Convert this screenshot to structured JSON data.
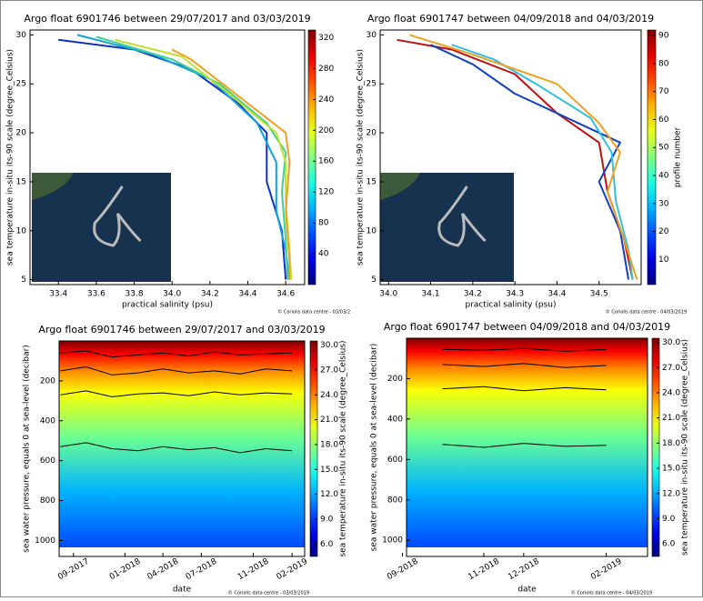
{
  "chart_data": [
    {
      "type": "line",
      "title": "Argo float 6901746 between 29/07/2017 and 03/03/2019",
      "xlabel": "practical salinity (psu)",
      "ylabel": "sea temperature in-situ its-90 scale (degree_Celsius)",
      "xlim": [
        33.25,
        34.7
      ],
      "xticks": [
        33.4,
        33.6,
        33.8,
        {
          "value": 34,
          "label": "34.0"
        },
        34.2,
        34.4,
        34.6
      ],
      "ylim": [
        4.5,
        30.5
      ],
      "yticks": [
        5,
        10,
        15,
        20,
        25,
        30
      ],
      "colormap": "jet",
      "clim": [
        0,
        330
      ],
      "cticks": [
        40,
        80,
        120,
        160,
        200,
        240,
        280,
        320
      ],
      "credit": "© Coriolis data centre - 03/03/2",
      "series": [
        {
          "color": "#1030c0",
          "x": [
            33.4,
            33.8,
            34.1,
            34.35,
            34.5,
            34.5,
            34.58,
            34.6
          ],
          "values": [
            29.5,
            28.5,
            26.5,
            23,
            20,
            15,
            10,
            5
          ]
        },
        {
          "color": "#10a0e0",
          "x": [
            33.5,
            33.9,
            34.2,
            34.45,
            34.55,
            34.55,
            34.6,
            34.62
          ],
          "values": [
            30,
            28,
            25.5,
            21,
            17,
            12,
            8,
            5
          ]
        },
        {
          "color": "#40d090",
          "x": [
            33.6,
            34.0,
            34.25,
            34.5,
            34.6,
            34.58,
            34.6,
            34.61
          ],
          "values": [
            29.8,
            27.5,
            25,
            21,
            18,
            14,
            9,
            5
          ]
        },
        {
          "color": "#c0e030",
          "x": [
            33.7,
            34.05,
            34.3,
            34.55,
            34.6,
            34.6,
            34.62,
            34.63
          ],
          "values": [
            29.5,
            27.8,
            24,
            20,
            17,
            13,
            8,
            5
          ]
        },
        {
          "color": "#f0a020",
          "x": [
            34.0,
            34.1,
            34.3,
            34.6,
            34.62,
            34.6,
            34.62,
            34.62
          ],
          "values": [
            28.5,
            27.5,
            24.5,
            20,
            17,
            12,
            7,
            5
          ]
        }
      ]
    },
    {
      "type": "line",
      "title": "Argo float 6901747 between 04/09/2018 and 04/03/2019",
      "xlabel": "practical salinity (psu)",
      "ylabel": "sea temperature in-situ its-90 scale (degree_Celsius)",
      "xlim": [
        33.98,
        34.6
      ],
      "xticks": [
        {
          "value": 34,
          "label": "34.0"
        },
        34.1,
        34.2,
        34.3,
        34.4,
        34.5
      ],
      "ylim": [
        4.5,
        30.5
      ],
      "yticks": [
        5,
        10,
        15,
        20,
        25,
        30
      ],
      "colormap": "jet",
      "clim": [
        1,
        92
      ],
      "cticks": [
        10,
        20,
        30,
        40,
        50,
        60,
        70,
        80,
        90
      ],
      "clabel": "profile number",
      "credit": "© Coriolis data centre - 04/03/2019",
      "series": [
        {
          "color": "#c01010",
          "x": [
            34.02,
            34.15,
            34.3,
            34.4,
            34.5,
            34.52,
            34.56,
            34.58
          ],
          "values": [
            29.5,
            28.5,
            26,
            22,
            19,
            14,
            9,
            5
          ]
        },
        {
          "color": "#1040c0",
          "x": [
            34.1,
            34.2,
            34.3,
            34.45,
            34.55,
            34.5,
            34.55,
            34.57
          ],
          "values": [
            29,
            27,
            24,
            21,
            19,
            15,
            10,
            5
          ]
        },
        {
          "color": "#30c0e0",
          "x": [
            34.15,
            34.25,
            34.35,
            34.48,
            34.53,
            34.54,
            34.57,
            34.58
          ],
          "values": [
            29,
            27.5,
            25,
            21.5,
            18,
            13,
            8,
            5
          ]
        },
        {
          "color": "#f0a020",
          "x": [
            34.05,
            34.2,
            34.4,
            34.5,
            34.55,
            34.52,
            34.56,
            34.59
          ],
          "values": [
            30,
            28,
            25,
            21,
            18,
            14,
            9,
            5
          ]
        }
      ]
    },
    {
      "type": "heatmap",
      "title": "Argo float 6901746 between 29/07/2017 and 03/03/2019",
      "xlabel": "date",
      "ylabel": "sea water pressure, equals 0 at sea-level (decibar)",
      "clabel": "sea temperature in-situ its-90 scale (degree_Celsius)",
      "xlim": [
        "2017-07-29",
        "2019-03-03"
      ],
      "xticks": [
        {
          "value": "2017-09",
          "label": "09-2017"
        },
        {
          "value": "2018-01",
          "label": "01-2018"
        },
        {
          "value": "2018-04",
          "label": "04-2018"
        },
        {
          "value": "2018-07",
          "label": "07-2018"
        },
        {
          "value": "2018-11",
          "label": "11-2018"
        },
        {
          "value": "2019-02",
          "label": "02-2019"
        }
      ],
      "ylim": [
        1080,
        0
      ],
      "yticks": [
        200,
        400,
        600,
        800,
        1000
      ],
      "colormap": "jet",
      "clim": [
        4.5,
        30.5
      ],
      "cticks": [
        {
          "value": 6,
          "label": "6.0"
        },
        {
          "value": 9,
          "label": "9.0"
        },
        {
          "value": 12,
          "label": "12.0"
        },
        {
          "value": 15,
          "label": "15.0"
        },
        {
          "value": 18,
          "label": "18.0"
        },
        {
          "value": 21,
          "label": "21.0"
        },
        {
          "value": 24,
          "label": "24.0"
        },
        {
          "value": 27,
          "label": "27.0"
        },
        {
          "value": 30,
          "label": "30.0"
        }
      ],
      "credit": "© Coriolis data centre - 03/03/2019",
      "series": [
        {
          "color": "#000000",
          "x": [
            "2017-08",
            "2017-10",
            "2017-12",
            "2018-02",
            "2018-04",
            "2018-06",
            "2018-08",
            "2018-10",
            "2018-12",
            "2019-02"
          ],
          "values": [
            60,
            50,
            80,
            70,
            60,
            75,
            55,
            70,
            65,
            60
          ]
        },
        {
          "color": "#000000",
          "x": [
            "2017-08",
            "2017-10",
            "2017-12",
            "2018-02",
            "2018-04",
            "2018-06",
            "2018-08",
            "2018-10",
            "2018-12",
            "2019-02"
          ],
          "values": [
            150,
            130,
            170,
            160,
            140,
            160,
            150,
            165,
            140,
            150
          ]
        },
        {
          "color": "#000000",
          "x": [
            "2017-08",
            "2017-10",
            "2017-12",
            "2018-02",
            "2018-04",
            "2018-06",
            "2018-08",
            "2018-10",
            "2018-12",
            "2019-02"
          ],
          "values": [
            270,
            250,
            280,
            265,
            260,
            275,
            255,
            270,
            260,
            265
          ]
        },
        {
          "color": "#000000",
          "x": [
            "2017-08",
            "2017-10",
            "2017-12",
            "2018-02",
            "2018-04",
            "2018-06",
            "2018-08",
            "2018-10",
            "2018-12",
            "2019-02"
          ],
          "values": [
            530,
            510,
            540,
            550,
            530,
            545,
            535,
            560,
            540,
            550
          ]
        }
      ]
    },
    {
      "type": "heatmap",
      "title": "Argo float 6901747 between 04/09/2018 and 04/03/2019",
      "xlabel": "date",
      "ylabel": "sea water pressure, equals 0 at sea-level (decibar)",
      "clabel": "sea temperature in-situ its-90 scale (degree_Celsius)",
      "xlim": [
        "2018-09-04",
        "2019-03-04"
      ],
      "xticks": [
        {
          "value": "2018-09",
          "label": "09-2018"
        },
        {
          "value": "2018-11",
          "label": "11-2018"
        },
        {
          "value": "2018-12",
          "label": "12-2018"
        },
        {
          "value": "2019-02",
          "label": "02-2019"
        }
      ],
      "ylim": [
        1080,
        0
      ],
      "yticks": [
        200,
        400,
        600,
        800,
        1000
      ],
      "colormap": "jet",
      "clim": [
        4.5,
        30.5
      ],
      "cticks": [
        {
          "value": 6,
          "label": "6.0"
        },
        {
          "value": 9,
          "label": "9.0"
        },
        {
          "value": 12,
          "label": "12.0"
        },
        {
          "value": 15,
          "label": "15.0"
        },
        {
          "value": 18,
          "label": "18.0"
        },
        {
          "value": 21,
          "label": "21.0"
        },
        {
          "value": 24,
          "label": "24.0"
        },
        {
          "value": 27,
          "label": "27.0"
        },
        {
          "value": 30,
          "label": "30.0"
        }
      ],
      "credit": "© Coriolis data centre - 04/03/2019",
      "series": [
        {
          "color": "#000000",
          "x": [
            "2018-10",
            "2018-11",
            "2018-12",
            "2019-01",
            "2019-02"
          ],
          "values": [
            55,
            60,
            50,
            65,
            55
          ]
        },
        {
          "color": "#000000",
          "x": [
            "2018-10",
            "2018-11",
            "2018-12",
            "2019-01",
            "2019-02"
          ],
          "values": [
            130,
            140,
            125,
            145,
            135
          ]
        },
        {
          "color": "#000000",
          "x": [
            "2018-10",
            "2018-11",
            "2018-12",
            "2019-01",
            "2019-02"
          ],
          "values": [
            250,
            240,
            260,
            245,
            255
          ]
        },
        {
          "color": "#000000",
          "x": [
            "2018-10",
            "2018-11",
            "2018-12",
            "2019-01",
            "2019-02"
          ],
          "values": [
            525,
            540,
            520,
            535,
            530
          ]
        }
      ]
    }
  ]
}
